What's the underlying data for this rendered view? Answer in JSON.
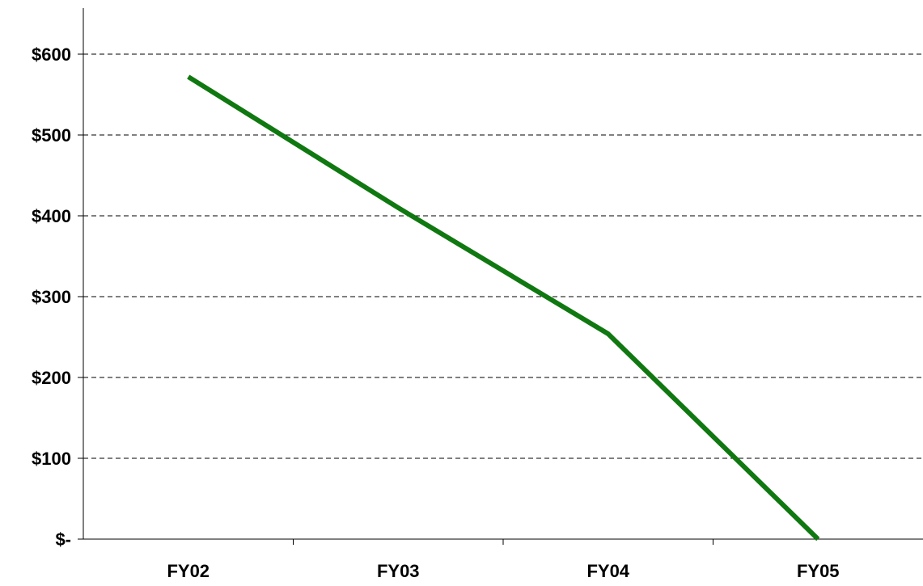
{
  "chart_data": {
    "type": "line",
    "title": "",
    "xlabel": "",
    "ylabel": "",
    "categories": [
      "FY02",
      "FY03",
      "FY04",
      "FY05"
    ],
    "series": [
      {
        "values": [
          572,
          410,
          254,
          0
        ],
        "color": "#107810"
      }
    ],
    "ylim": [
      0,
      600
    ],
    "y_ticks": [
      {
        "value": 0,
        "label": "$-"
      },
      {
        "value": 100,
        "label": "$100"
      },
      {
        "value": 200,
        "label": "$200"
      },
      {
        "value": 300,
        "label": "$300"
      },
      {
        "value": 400,
        "label": "$400"
      },
      {
        "value": 500,
        "label": "$500"
      },
      {
        "value": 600,
        "label": "$600"
      }
    ],
    "grid": true,
    "legend": "none"
  }
}
